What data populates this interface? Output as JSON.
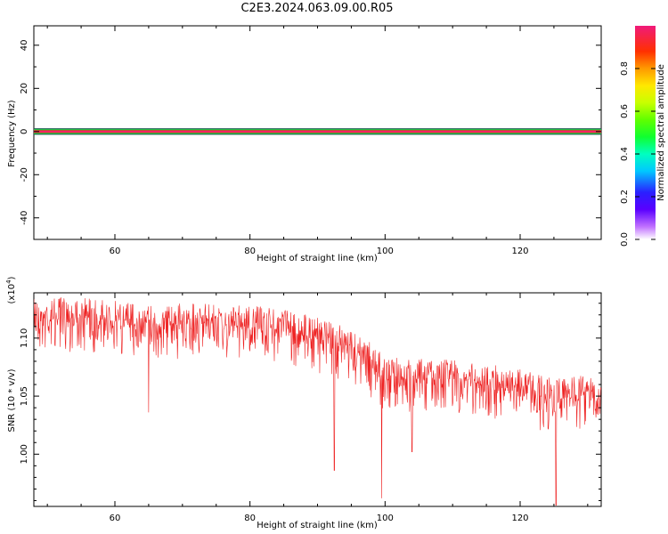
{
  "title": "C2E3.2024.063.09.00.R05",
  "chart_data": [
    {
      "type": "line",
      "name": "spectrogram",
      "xlabel": "Height of straight line (km)",
      "ylabel": "Frequency (Hz)",
      "xlim": [
        48,
        132
      ],
      "ylim": [
        -50,
        49
      ],
      "xticks": [
        60,
        80,
        100,
        120
      ],
      "yticks": [
        40,
        20,
        0,
        -20,
        -40
      ],
      "band": {
        "center_hz": 0,
        "layers": [
          {
            "half_width_hz": 1.5,
            "amplitude": 0.0
          },
          {
            "half_width_hz": 1.1,
            "amplitude": 0.45
          },
          {
            "half_width_hz": 0.6,
            "amplitude": 0.85
          },
          {
            "half_width_hz": 0.3,
            "amplitude": 1.0
          }
        ]
      },
      "colorbar": {
        "label": "Normalized spectral amplitude",
        "ticks": [
          0.0,
          0.2,
          0.4,
          0.6,
          0.8
        ],
        "range": [
          0,
          1
        ]
      },
      "colors": {
        "outer": "#1a5a50",
        "mid": "#22cc44",
        "inner": "#ff1f1f",
        "core": "#ff2277"
      }
    },
    {
      "type": "line",
      "name": "snr",
      "xlabel": "Height of straight line (km)",
      "ylabel": "SNR (10 * v/v)",
      "scale_label": "(x10",
      "scale_exp": "4",
      "scale_close": ")",
      "xlim": [
        48,
        132
      ],
      "ylim": [
        0.955,
        1.139
      ],
      "xticks": [
        60,
        80,
        100,
        120
      ],
      "yticks": [
        1.0,
        1.05,
        1.1
      ],
      "ytick_labels": [
        "1.00",
        "1.05",
        "1.10"
      ],
      "trend": {
        "x": [
          48,
          55,
          65,
          75,
          85,
          90,
          95,
          98,
          100,
          105,
          110,
          115,
          120,
          125,
          128,
          132
        ],
        "y": [
          1.117,
          1.118,
          1.112,
          1.112,
          1.108,
          1.1,
          1.09,
          1.078,
          1.066,
          1.065,
          1.065,
          1.06,
          1.055,
          1.047,
          1.05,
          1.048
        ]
      },
      "noise_up": 0.018,
      "noise_down": 0.03,
      "deep_dips": [
        {
          "x": 92.5,
          "y": 0.986
        },
        {
          "x": 99.5,
          "y": 0.962
        },
        {
          "x": 125.3,
          "y": 0.956
        },
        {
          "x": 65.0,
          "y": 1.036
        },
        {
          "x": 104.0,
          "y": 1.002
        }
      ],
      "color": "#ee2222"
    }
  ]
}
